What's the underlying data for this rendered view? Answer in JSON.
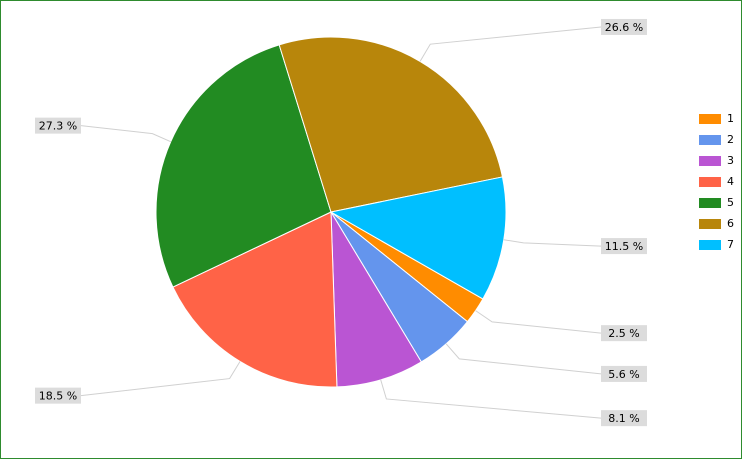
{
  "chart_data": {
    "type": "pie",
    "categories": [
      "1",
      "2",
      "3",
      "4",
      "5",
      "6",
      "7"
    ],
    "values": [
      2.5,
      5.6,
      8.1,
      18.5,
      27.3,
      26.6,
      11.5
    ],
    "value_labels": [
      "2.5 %",
      "5.6 %",
      "8.1 %",
      "18.5 %",
      "27.3 %",
      "26.6 %",
      "11.5 %"
    ],
    "colors": [
      "#ff8c00",
      "#6495ed",
      "#ba55d3",
      "#ff6347",
      "#228b22",
      "#b8860b",
      "#00bfff"
    ],
    "legend": "right"
  }
}
